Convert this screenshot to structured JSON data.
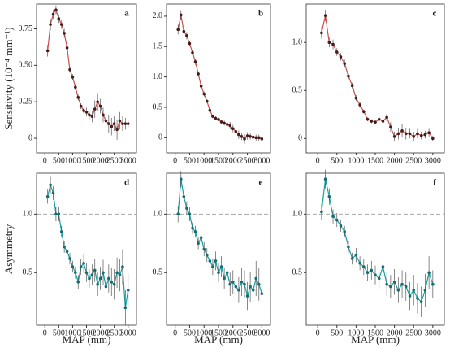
{
  "chart_data": [
    {
      "type": "line",
      "title": "a",
      "ylabel": "Sensitivity (10⁻⁴ mm⁻¹)",
      "color": "#c9504d",
      "marker_color": "#4a1a1a",
      "x": [
        100,
        200,
        300,
        400,
        500,
        600,
        700,
        800,
        900,
        1000,
        1100,
        1200,
        1300,
        1400,
        1500,
        1600,
        1700,
        1800,
        1900,
        2000,
        2100,
        2200,
        2300,
        2400,
        2500,
        2600,
        2700,
        2800,
        2900,
        3000
      ],
      "values": [
        0.6,
        0.78,
        0.85,
        0.88,
        0.82,
        0.78,
        0.72,
        0.62,
        0.47,
        0.42,
        0.35,
        0.28,
        0.22,
        0.19,
        0.18,
        0.16,
        0.15,
        0.2,
        0.25,
        0.22,
        0.16,
        0.12,
        0.1,
        0.08,
        0.1,
        0.06,
        0.12,
        0.1,
        0.1,
        0.1
      ],
      "errors": [
        0.04,
        0.04,
        0.03,
        0.03,
        0.03,
        0.03,
        0.03,
        0.03,
        0.02,
        0.02,
        0.02,
        0.02,
        0.02,
        0.02,
        0.03,
        0.03,
        0.04,
        0.06,
        0.06,
        0.05,
        0.05,
        0.05,
        0.06,
        0.06,
        0.05,
        0.07,
        0.06,
        0.05,
        0.04,
        0.03
      ],
      "xlim": [
        -300,
        3300
      ],
      "xticks": [
        0,
        500,
        1000,
        1500,
        2000,
        2500,
        3000
      ],
      "ylim": [
        -0.1,
        0.92
      ],
      "yticks": [
        0,
        {
          "value": 0.25,
          "label": "0.25"
        },
        {
          "value": 0.5,
          "label": "0.50"
        },
        {
          "value": 0.75,
          "label": "0.75"
        }
      ]
    },
    {
      "type": "line",
      "title": "b",
      "color": "#c9504d",
      "marker_color": "#4a1a1a",
      "x": [
        100,
        200,
        300,
        400,
        500,
        600,
        700,
        800,
        900,
        1000,
        1100,
        1200,
        1300,
        1400,
        1500,
        1600,
        1700,
        1800,
        1900,
        2000,
        2100,
        2200,
        2300,
        2400,
        2500,
        2600,
        2700,
        2800,
        2900,
        3000
      ],
      "values": [
        1.78,
        2.02,
        1.75,
        1.68,
        1.55,
        1.4,
        1.25,
        1.05,
        0.85,
        0.72,
        0.6,
        0.45,
        0.35,
        0.32,
        0.3,
        0.26,
        0.24,
        0.22,
        0.2,
        0.15,
        0.1,
        0.05,
        0.02,
        -0.02,
        0.03,
        0.02,
        0.01,
        0,
        0,
        -0.02
      ],
      "errors": [
        0.08,
        0.08,
        0.06,
        0.06,
        0.05,
        0.05,
        0.05,
        0.04,
        0.04,
        0.04,
        0.03,
        0.03,
        0.03,
        0.03,
        0.03,
        0.03,
        0.04,
        0.05,
        0.06,
        0.06,
        0.06,
        0.07,
        0.06,
        0.08,
        0.06,
        0.05,
        0.05,
        0.05,
        0.05,
        0.04
      ],
      "xlim": [
        -300,
        3300
      ],
      "xticks": [
        0,
        500,
        1000,
        1500,
        2000,
        2500,
        3000
      ],
      "ylim": [
        -0.25,
        2.2
      ],
      "yticks": [
        0,
        {
          "value": 0.5,
          "label": "0.5"
        },
        {
          "value": 1,
          "label": "1.0"
        },
        {
          "value": 1.5,
          "label": "1.5"
        },
        {
          "value": 2,
          "label": "2.0"
        }
      ]
    },
    {
      "type": "line",
      "title": "c",
      "color": "#c9504d",
      "marker_color": "#4a1a1a",
      "x": [
        100,
        200,
        300,
        400,
        500,
        600,
        700,
        800,
        900,
        1000,
        1100,
        1200,
        1300,
        1400,
        1500,
        1600,
        1700,
        1800,
        1900,
        2000,
        2100,
        2200,
        2300,
        2400,
        2500,
        2600,
        2700,
        2800,
        2900,
        3000
      ],
      "values": [
        1.1,
        1.28,
        1.0,
        0.98,
        0.9,
        0.85,
        0.78,
        0.65,
        0.55,
        0.42,
        0.35,
        0.28,
        0.2,
        0.18,
        0.17,
        0.2,
        0.18,
        0.22,
        0.12,
        0.02,
        0.05,
        0.08,
        0.05,
        0.05,
        0.02,
        0.05,
        0.03,
        0.04,
        0.06,
        0
      ],
      "errors": [
        0.06,
        0.06,
        0.05,
        0.05,
        0.04,
        0.04,
        0.04,
        0.03,
        0.03,
        0.03,
        0.03,
        0.02,
        0.02,
        0.02,
        0.02,
        0.03,
        0.03,
        0.04,
        0.05,
        0.05,
        0.06,
        0.07,
        0.06,
        0.05,
        0.05,
        0.05,
        0.04,
        0.04,
        0.04,
        0.03
      ],
      "xlim": [
        -300,
        3300
      ],
      "xticks": [
        0,
        500,
        1000,
        1500,
        2000,
        2500,
        3000
      ],
      "ylim": [
        -0.15,
        1.4
      ],
      "yticks": [
        0,
        {
          "value": 0.5,
          "label": "0.5"
        },
        {
          "value": 1,
          "label": "1.0"
        }
      ]
    },
    {
      "type": "line",
      "title": "d",
      "ylabel": "Asymmetry",
      "xlabel": "MAP (mm)",
      "color": "#1a9ea0",
      "marker_color": "#0f6f72",
      "refline": 1,
      "x": [
        100,
        200,
        300,
        400,
        500,
        600,
        700,
        800,
        900,
        1000,
        1100,
        1200,
        1300,
        1400,
        1500,
        1600,
        1700,
        1800,
        1900,
        2000,
        2100,
        2200,
        2300,
        2400,
        2500,
        2600,
        2700,
        2800,
        2900,
        3000
      ],
      "values": [
        1.15,
        1.25,
        1.18,
        1.0,
        1.0,
        0.85,
        0.72,
        0.68,
        0.62,
        0.55,
        0.5,
        0.42,
        0.55,
        0.58,
        0.5,
        0.45,
        0.48,
        0.52,
        0.4,
        0.45,
        0.5,
        0.38,
        0.45,
        0.42,
        0.4,
        0.5,
        0.48,
        0.55,
        0.2,
        0.35
      ],
      "errors": [
        0.06,
        0.07,
        0.06,
        0.06,
        0.06,
        0.05,
        0.05,
        0.05,
        0.05,
        0.05,
        0.05,
        0.06,
        0.07,
        0.08,
        0.08,
        0.08,
        0.09,
        0.1,
        0.1,
        0.1,
        0.11,
        0.11,
        0.12,
        0.12,
        0.13,
        0.13,
        0.14,
        0.15,
        0.15,
        0.14
      ],
      "xlim": [
        -300,
        3300
      ],
      "xticks": [
        0,
        500,
        1000,
        1500,
        2000,
        2500,
        3000
      ],
      "ylim": [
        0.05,
        1.35
      ],
      "yticks": [
        {
          "value": 0.5,
          "label": "0.5"
        },
        {
          "value": 1,
          "label": "1.0"
        }
      ]
    },
    {
      "type": "line",
      "title": "e",
      "xlabel": "MAP (mm)",
      "color": "#1a9ea0",
      "marker_color": "#0f6f72",
      "refline": 1,
      "x": [
        100,
        200,
        300,
        400,
        500,
        600,
        700,
        800,
        900,
        1000,
        1100,
        1200,
        1300,
        1400,
        1500,
        1600,
        1700,
        1800,
        1900,
        2000,
        2100,
        2200,
        2300,
        2400,
        2500,
        2600,
        2700,
        2800,
        2900,
        3000
      ],
      "values": [
        1.0,
        1.3,
        1.15,
        1.05,
        1.0,
        0.88,
        0.85,
        0.75,
        0.8,
        0.7,
        0.65,
        0.6,
        0.55,
        0.6,
        0.5,
        0.55,
        0.45,
        0.5,
        0.4,
        0.42,
        0.38,
        0.35,
        0.42,
        0.4,
        0.3,
        0.38,
        0.35,
        0.45,
        0.4,
        0.32
      ],
      "errors": [
        0.07,
        0.07,
        0.06,
        0.06,
        0.06,
        0.05,
        0.05,
        0.05,
        0.06,
        0.06,
        0.06,
        0.07,
        0.07,
        0.08,
        0.08,
        0.09,
        0.09,
        0.1,
        0.1,
        0.1,
        0.11,
        0.11,
        0.12,
        0.12,
        0.12,
        0.13,
        0.13,
        0.15,
        0.14,
        0.12
      ],
      "xlim": [
        -300,
        3300
      ],
      "xticks": [
        0,
        500,
        1000,
        1500,
        2000,
        2500,
        3000
      ],
      "ylim": [
        0.05,
        1.35
      ],
      "yticks": [
        {
          "value": 0.5,
          "label": "0.5"
        },
        {
          "value": 1,
          "label": "1.0"
        }
      ]
    },
    {
      "type": "line",
      "title": "f",
      "xlabel": "MAP (mm)",
      "color": "#1a9ea0",
      "marker_color": "#0f6f72",
      "refline": 1,
      "x": [
        100,
        200,
        300,
        400,
        500,
        600,
        700,
        800,
        900,
        1000,
        1100,
        1200,
        1300,
        1400,
        1500,
        1600,
        1700,
        1800,
        1900,
        2000,
        2100,
        2200,
        2300,
        2400,
        2500,
        2600,
        2700,
        2800,
        2900,
        3000
      ],
      "values": [
        1.02,
        1.3,
        1.15,
        0.98,
        0.95,
        0.9,
        0.85,
        0.72,
        0.62,
        0.65,
        0.58,
        0.55,
        0.5,
        0.52,
        0.48,
        0.45,
        0.55,
        0.4,
        0.38,
        0.42,
        0.35,
        0.4,
        0.38,
        0.3,
        0.35,
        0.28,
        0.25,
        0.35,
        0.5,
        0.4
      ],
      "errors": [
        0.07,
        0.08,
        0.07,
        0.06,
        0.06,
        0.05,
        0.05,
        0.05,
        0.05,
        0.06,
        0.06,
        0.07,
        0.07,
        0.08,
        0.08,
        0.09,
        0.1,
        0.1,
        0.1,
        0.11,
        0.11,
        0.12,
        0.12,
        0.12,
        0.13,
        0.13,
        0.13,
        0.14,
        0.14,
        0.12
      ],
      "xlim": [
        -300,
        3300
      ],
      "xticks": [
        0,
        500,
        1000,
        1500,
        2000,
        2500,
        3000
      ],
      "ylim": [
        0.05,
        1.35
      ],
      "yticks": [
        {
          "value": 0.5,
          "label": "0.5"
        },
        {
          "value": 1,
          "label": "1.0"
        }
      ]
    }
  ]
}
